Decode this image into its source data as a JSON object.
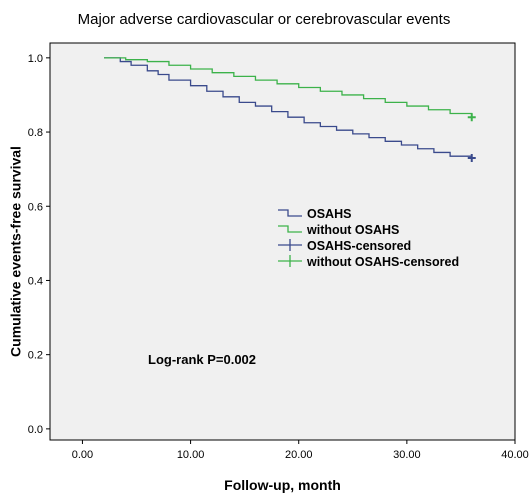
{
  "chart_data": {
    "type": "line",
    "step": true,
    "title": "Major adverse cardiovascular or cerebrovascular events",
    "xlabel": "Follow-up, month",
    "ylabel": "Cumulative events-free survival",
    "xlim": [
      -3,
      40
    ],
    "ylim": [
      -0.03,
      1.04
    ],
    "xticks": [
      0,
      10,
      20,
      30,
      40
    ],
    "xtick_labels": [
      "0.00",
      "10.00",
      "20.00",
      "30.00",
      "40.00"
    ],
    "yticks": [
      0.0,
      0.2,
      0.4,
      0.6,
      0.8,
      1.0
    ],
    "ytick_labels": [
      "0.0",
      "0.2",
      "0.4",
      "0.6",
      "0.8",
      "1.0"
    ],
    "grid": false,
    "plot_background": "#f0f0f0",
    "series": [
      {
        "name": "OSAHS",
        "color": "#3a4a8c",
        "x": [
          2,
          3.5,
          4.5,
          6,
          7,
          8,
          10,
          11.5,
          13,
          14.5,
          16,
          17.5,
          19,
          20.5,
          22,
          23.5,
          25,
          26.5,
          28,
          29.5,
          31,
          32.5,
          34,
          36
        ],
        "y": [
          1.0,
          0.99,
          0.98,
          0.965,
          0.955,
          0.94,
          0.925,
          0.91,
          0.895,
          0.88,
          0.87,
          0.855,
          0.84,
          0.825,
          0.815,
          0.805,
          0.795,
          0.785,
          0.775,
          0.765,
          0.755,
          0.745,
          0.735,
          0.73
        ]
      },
      {
        "name": "without OSAHS",
        "color": "#3cb24a",
        "x": [
          2,
          4,
          6,
          8,
          10,
          12,
          14,
          16,
          18,
          20,
          22,
          24,
          26,
          28,
          30,
          32,
          34,
          36
        ],
        "y": [
          1.0,
          0.995,
          0.99,
          0.98,
          0.97,
          0.96,
          0.95,
          0.94,
          0.93,
          0.92,
          0.91,
          0.9,
          0.89,
          0.88,
          0.87,
          0.86,
          0.85,
          0.84
        ]
      }
    ],
    "censored": [
      {
        "name": "OSAHS-censored",
        "color": "#3a4a8c",
        "x": [
          36
        ],
        "y": [
          0.73
        ]
      },
      {
        "name": "without OSAHS-censored",
        "color": "#3cb24a",
        "x": [
          36
        ],
        "y": [
          0.84
        ]
      }
    ],
    "legend": {
      "placement": "center-right",
      "entries": [
        "OSAHS",
        "without OSAHS",
        "OSAHS-censored",
        "without OSAHS-censored"
      ]
    },
    "annotation": "Log-rank P=0.002"
  }
}
